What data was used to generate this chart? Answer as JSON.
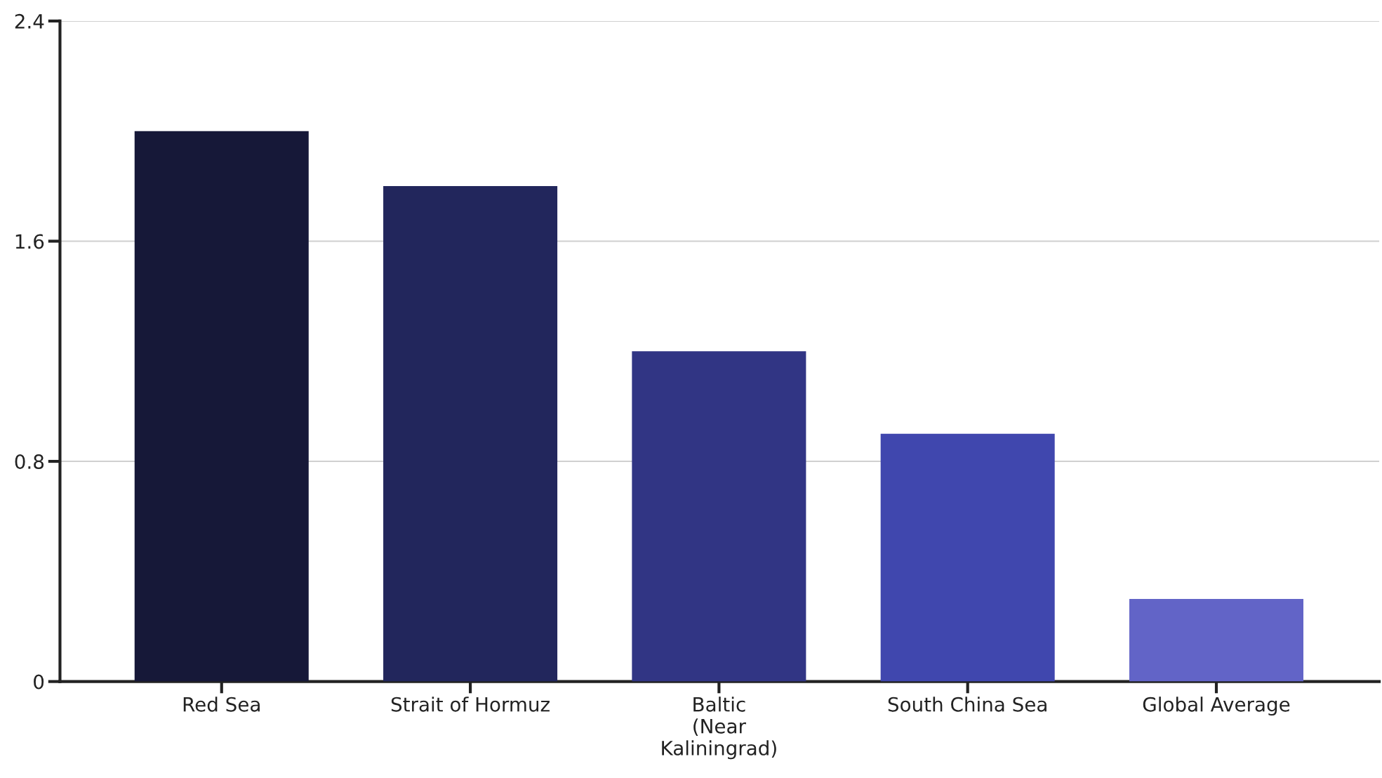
{
  "chart_data": {
    "type": "bar",
    "categories": [
      "Red Sea",
      "Strait of Hormuz",
      "Baltic\n(Near\nKaliningrad)",
      "South China Sea",
      "Global Average"
    ],
    "values": [
      2.0,
      1.8,
      1.2,
      0.9,
      0.3
    ],
    "colors": [
      "#161838",
      "#22265c",
      "#313584",
      "#4047ae",
      "#6264c7"
    ],
    "ylim": [
      0,
      2.4
    ],
    "yticks": [
      0,
      0.8,
      1.6,
      2.4
    ],
    "grid": "y"
  }
}
